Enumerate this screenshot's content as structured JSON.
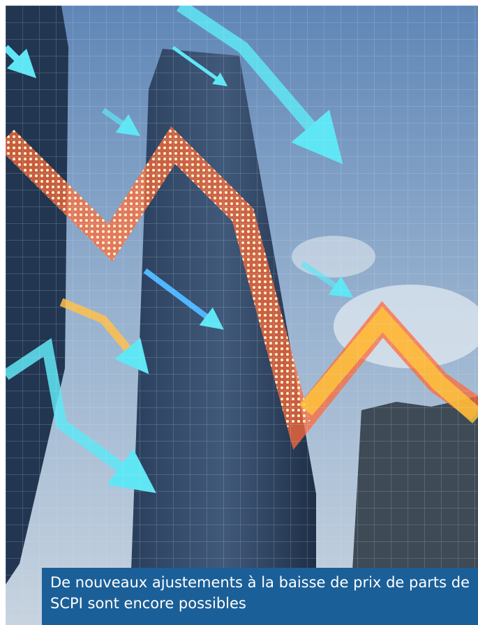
{
  "caption": "De nouveaux ajustements à la baisse de prix de parts de SCPI sont encore possibles"
}
